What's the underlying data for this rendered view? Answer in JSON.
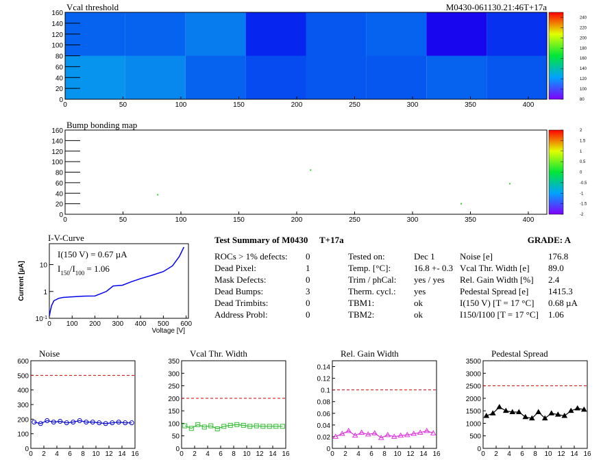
{
  "chart_data": [
    {
      "type": "heatmap",
      "title": "Vcal threshold",
      "label": "M0430-061130.21:46T+17a",
      "xbins": [
        0,
        52,
        104,
        156,
        208,
        260,
        312,
        364,
        416
      ],
      "ybins": [
        0,
        80,
        160
      ],
      "values": [
        [
          122,
          120,
          114,
          110,
          112,
          112,
          114,
          112
        ],
        [
          114,
          114,
          118,
          104,
          112,
          114,
          96,
          106
        ]
      ],
      "xlim": [
        0,
        416
      ],
      "ylim": [
        0,
        160
      ],
      "zlim": [
        80,
        250
      ],
      "xticks": [
        0,
        50,
        100,
        150,
        200,
        250,
        300,
        350,
        400
      ],
      "yticks": [
        0,
        20,
        40,
        60,
        80,
        100,
        120,
        140,
        160
      ],
      "zticks": [
        80,
        100,
        120,
        140,
        160,
        180,
        200,
        220,
        240
      ]
    },
    {
      "type": "scatter",
      "title": "Bump bonding map",
      "color": "#33cc33",
      "x": [
        80,
        212,
        342,
        384
      ],
      "y": [
        37,
        84,
        20,
        58
      ],
      "xlim": [
        0,
        416
      ],
      "ylim": [
        0,
        160
      ],
      "zlim": [
        -2,
        2
      ],
      "xticks": [
        0,
        50,
        100,
        150,
        200,
        250,
        300,
        350,
        400
      ],
      "yticks": [
        0,
        20,
        40,
        60,
        80,
        100,
        120,
        140,
        160
      ],
      "zticks": [
        -2,
        -1.5,
        -1,
        -0.5,
        0,
        0.5,
        1,
        1.5,
        2
      ]
    },
    {
      "type": "line",
      "title": "I-V-Curve",
      "x_label": "Voltage [V]",
      "y_label": "Current [µA]",
      "log_y": true,
      "color": "#0000ee",
      "annotations": [
        [
          "I(150 V) = 0.67 µA"
        ],
        [
          "I",
          "150",
          "/I",
          "100",
          " =  1.06"
        ]
      ],
      "x": [
        0,
        5,
        10,
        20,
        40,
        60,
        100,
        150,
        200,
        250,
        280,
        320,
        360,
        400,
        450,
        500,
        540,
        570,
        590
      ],
      "y": [
        0.12,
        0.2,
        0.3,
        0.45,
        0.55,
        0.6,
        0.63,
        0.67,
        0.68,
        1.0,
        1.6,
        1.7,
        2.3,
        3.0,
        4.0,
        5.5,
        9,
        20,
        45
      ],
      "xlim": [
        0,
        610
      ],
      "ylim": [
        0.1,
        60
      ],
      "xticks": [
        0,
        100,
        200,
        300,
        400,
        500,
        600
      ],
      "yticks": [
        {
          "value": 0.1,
          "label": [
            "10",
            "-1"
          ]
        },
        1,
        10
      ]
    },
    {
      "type": "line",
      "title": "Noise",
      "marker": "circle",
      "color": "#0000cc",
      "limit": 500,
      "x": [
        0.5,
        1.5,
        2.5,
        3.5,
        4.5,
        5.5,
        6.5,
        7.5,
        8.5,
        9.5,
        10.5,
        11.5,
        12.5,
        13.5,
        14.5,
        15.5
      ],
      "values": [
        180,
        170,
        190,
        180,
        185,
        175,
        180,
        190,
        180,
        180,
        175,
        170,
        175,
        180,
        175,
        175
      ],
      "xlim": [
        0,
        16
      ],
      "ylim": [
        0,
        600
      ],
      "xticks": [
        0,
        2,
        4,
        6,
        8,
        10,
        12,
        14,
        16
      ],
      "yticks": [
        0,
        100,
        200,
        300,
        400,
        500,
        600
      ]
    },
    {
      "type": "line",
      "title": "Vcal Thr. Width",
      "marker": "square",
      "color": "#33bb33",
      "limit": 200,
      "x": [
        0.5,
        1.5,
        2.5,
        3.5,
        4.5,
        5.5,
        6.5,
        7.5,
        8.5,
        9.5,
        10.5,
        11.5,
        12.5,
        13.5,
        14.5,
        15.5
      ],
      "values": [
        90,
        80,
        95,
        85,
        90,
        78,
        88,
        92,
        95,
        92,
        88,
        90,
        88,
        88,
        88,
        88
      ],
      "xlim": [
        0,
        16
      ],
      "ylim": [
        0,
        350
      ],
      "xticks": [
        0,
        2,
        4,
        6,
        8,
        10,
        12,
        14,
        16
      ],
      "yticks": [
        0,
        50,
        100,
        150,
        200,
        250,
        300,
        350
      ]
    },
    {
      "type": "line",
      "title": "Rel. Gain Width",
      "marker": "triangle",
      "color": "#dd33dd",
      "limit": 0.1,
      "x": [
        0.5,
        1.5,
        2.5,
        3.5,
        4.5,
        5.5,
        6.5,
        7.5,
        8.5,
        9.5,
        10.5,
        11.5,
        12.5,
        13.5,
        14.5,
        15.5
      ],
      "values": [
        0.02,
        0.025,
        0.03,
        0.022,
        0.027,
        0.024,
        0.026,
        0.018,
        0.023,
        0.02,
        0.022,
        0.023,
        0.025,
        0.027,
        0.03,
        0.026
      ],
      "xlim": [
        0,
        16
      ],
      "ylim": [
        0,
        0.15
      ],
      "xticks": [
        0,
        2,
        4,
        6,
        8,
        10,
        12,
        14,
        16
      ],
      "yticks": [
        0,
        0.02,
        0.04,
        0.06,
        0.08,
        0.1,
        0.12,
        0.14
      ]
    },
    {
      "type": "line",
      "title": "Pedestal Spread",
      "marker": "filled-triangle",
      "color": "#000000",
      "limit": 2500,
      "x": [
        0.5,
        1.5,
        2.5,
        3.5,
        4.5,
        5.5,
        6.5,
        7.5,
        8.5,
        9.5,
        10.5,
        11.5,
        12.5,
        13.5,
        14.5,
        15.5
      ],
      "values": [
        1300,
        1400,
        1650,
        1500,
        1450,
        1450,
        1250,
        1200,
        1450,
        1200,
        1400,
        1350,
        1300,
        1500,
        1600,
        1550
      ],
      "xlim": [
        0,
        16
      ],
      "ylim": [
        0,
        3500
      ],
      "xticks": [
        0,
        2,
        4,
        6,
        8,
        10,
        12,
        14,
        16
      ],
      "yticks": [
        0,
        500,
        1000,
        1500,
        2000,
        2500,
        3000,
        3500
      ]
    }
  ],
  "summary": {
    "title": "Test Summary of M0430",
    "tag": "T+17a",
    "grade": "GRADE:  A",
    "columns": [
      [
        [
          "ROCs > 1% defects:",
          "0"
        ],
        [
          "Dead Pixel:",
          "1"
        ],
        [
          "Mask Defects:",
          "0"
        ],
        [
          "Dead Bumps:",
          "3"
        ],
        [
          "Dead Trimbits:",
          "0"
        ],
        [
          "Address Probl:",
          "0"
        ]
      ],
      [
        [
          "Tested on:",
          "Dec 1"
        ],
        [
          "Temp. [°C]:",
          "16.8 +- 0.3"
        ],
        [
          "Trim / phCal:",
          "yes / yes"
        ],
        [
          "Therm. cycl.:",
          "yes"
        ],
        [
          "TBM1:",
          "ok"
        ],
        [
          "TBM2:",
          "ok"
        ]
      ],
      [
        [
          "Noise [e]",
          "176.8"
        ],
        [
          "Vcal Thr. Width [e]",
          "89.0"
        ],
        [
          "Rel. Gain Width [%]",
          "2.4"
        ],
        [
          "Pedestal Spread [e]",
          "1415.3"
        ],
        [
          "I(150 V) [T = 17 °C]",
          "0.68 µA"
        ],
        [
          "I150/I100  [T = 17 °C]",
          "1.06"
        ]
      ]
    ]
  }
}
